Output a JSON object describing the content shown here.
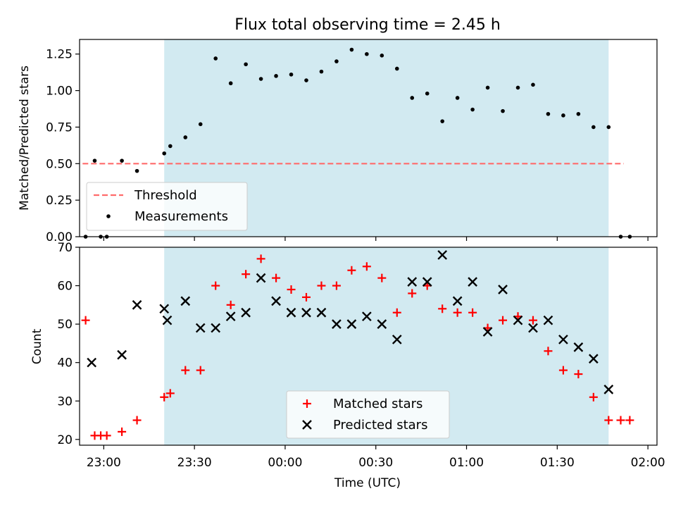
{
  "colors": {
    "shade": "#add8e6",
    "threshold": "#ff6b6b",
    "matched": "#ff0000",
    "predicted": "#000000",
    "measurement": "#000000"
  },
  "chart_data": [
    {
      "type": "scatter",
      "title": "Flux total observing time = 2.45 h",
      "xlabel": "",
      "ylabel": "Matched/Predicted stars",
      "xlim": [
        "22:52",
        "02:03"
      ],
      "ylim": [
        0,
        1.35
      ],
      "yticks": [
        0,
        0.25,
        0.5,
        0.75,
        1.0,
        1.25
      ],
      "ytick_labels": [
        "0.00",
        "0.25",
        "0.50",
        "0.75",
        "1.00",
        "1.25"
      ],
      "shaded_interval": [
        "23:20",
        "01:47"
      ],
      "legend_position": "lower-left",
      "threshold": {
        "name": "Threshold",
        "y": 0.5,
        "x": [
          "22:53",
          "01:52"
        ]
      },
      "measurements": {
        "name": "Measurements",
        "x": [
          "22:54",
          "22:57",
          "22:59",
          "23:01",
          "23:06",
          "23:11",
          "23:20",
          "23:22",
          "23:27",
          "23:32",
          "23:37",
          "23:42",
          "23:47",
          "23:52",
          "23:57",
          "00:02",
          "00:07",
          "00:12",
          "00:17",
          "00:22",
          "00:27",
          "00:32",
          "00:37",
          "00:42",
          "00:47",
          "00:52",
          "00:57",
          "01:02",
          "01:07",
          "01:12",
          "01:17",
          "01:22",
          "01:27",
          "01:32",
          "01:37",
          "01:42",
          "01:47",
          "01:51",
          "01:54"
        ],
        "y": [
          0.0,
          0.52,
          0.0,
          0.0,
          0.52,
          0.45,
          0.57,
          0.62,
          0.68,
          0.77,
          1.22,
          1.05,
          1.18,
          1.08,
          1.1,
          1.11,
          1.07,
          1.13,
          1.2,
          1.28,
          1.25,
          1.24,
          1.15,
          0.95,
          0.98,
          0.79,
          0.95,
          0.87,
          1.02,
          0.86,
          1.02,
          1.04,
          0.84,
          0.83,
          0.84,
          0.75,
          0.75,
          0.0,
          0.0
        ]
      }
    },
    {
      "type": "scatter",
      "title": "",
      "xlabel": "Time (UTC)",
      "ylabel": "Count",
      "xlim": [
        "22:52",
        "02:03"
      ],
      "ylim": [
        18.5,
        70
      ],
      "yticks": [
        20,
        30,
        40,
        50,
        60,
        70
      ],
      "ytick_labels": [
        "20",
        "30",
        "40",
        "50",
        "60",
        "70"
      ],
      "xticks": [
        "23:00",
        "23:30",
        "00:00",
        "00:30",
        "01:00",
        "01:30",
        "02:00"
      ],
      "xtick_labels": [
        "23:00",
        "23:30",
        "00:00",
        "00:30",
        "01:00",
        "01:30",
        "02:00"
      ],
      "shaded_interval": [
        "23:20",
        "01:47"
      ],
      "legend_position": "lower-center",
      "series": [
        {
          "name": "Matched stars",
          "marker": "plus",
          "x": [
            "22:54",
            "22:57",
            "22:59",
            "23:01",
            "23:06",
            "23:11",
            "23:20",
            "23:22",
            "23:27",
            "23:32",
            "23:37",
            "23:42",
            "23:47",
            "23:52",
            "23:57",
            "00:02",
            "00:07",
            "00:12",
            "00:17",
            "00:22",
            "00:27",
            "00:32",
            "00:37",
            "00:42",
            "00:47",
            "00:52",
            "00:57",
            "01:02",
            "01:07",
            "01:12",
            "01:17",
            "01:22",
            "01:27",
            "01:32",
            "01:37",
            "01:42",
            "01:47",
            "01:51",
            "01:54"
          ],
          "y": [
            51,
            21,
            21,
            21,
            22,
            25,
            31,
            32,
            38,
            38,
            60,
            55,
            63,
            67,
            62,
            59,
            57,
            60,
            60,
            64,
            65,
            62,
            53,
            58,
            60,
            54,
            53,
            53,
            49,
            51,
            52,
            51,
            43,
            38,
            37,
            31,
            25,
            25,
            25
          ]
        },
        {
          "name": "Predicted stars",
          "marker": "x",
          "x": [
            "22:56",
            "23:06",
            "23:11",
            "23:20",
            "23:21",
            "23:27",
            "23:32",
            "23:37",
            "23:42",
            "23:47",
            "23:52",
            "23:57",
            "00:02",
            "00:07",
            "00:12",
            "00:17",
            "00:22",
            "00:27",
            "00:32",
            "00:37",
            "00:42",
            "00:47",
            "00:52",
            "00:57",
            "01:02",
            "01:07",
            "01:12",
            "01:17",
            "01:22",
            "01:27",
            "01:32",
            "01:37",
            "01:42",
            "01:47"
          ],
          "y": [
            40,
            42,
            55,
            54,
            51,
            56,
            49,
            49,
            52,
            53,
            62,
            56,
            53,
            53,
            53,
            50,
            50,
            52,
            50,
            46,
            61,
            61,
            68,
            56,
            61,
            48,
            59,
            51,
            49,
            51,
            46,
            44,
            41,
            33
          ]
        }
      ]
    }
  ]
}
